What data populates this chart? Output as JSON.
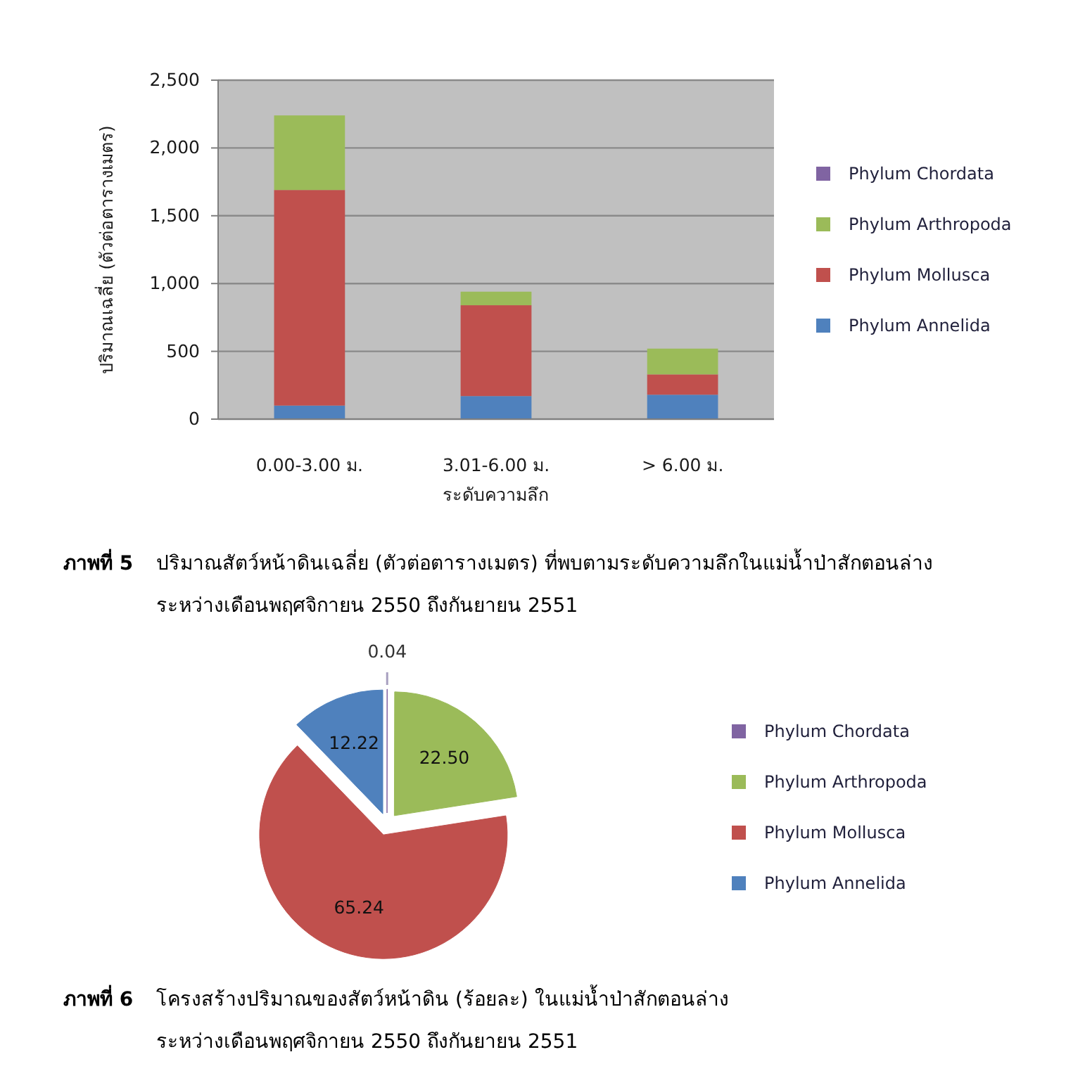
{
  "chart_data": [
    {
      "type": "bar",
      "stacked": true,
      "categories": [
        "0.00-3.00 ม.",
        "3.01-6.00 ม.",
        "> 6.00 ม."
      ],
      "series": [
        {
          "name": "Phylum Annelida",
          "color": "#4f81bd",
          "values": [
            100,
            170,
            180
          ]
        },
        {
          "name": "Phylum Mollusca",
          "color": "#c0504d",
          "values": [
            1590,
            670,
            150
          ]
        },
        {
          "name": "Phylum Arthropoda",
          "color": "#9bbb59",
          "values": [
            550,
            100,
            190
          ]
        },
        {
          "name": "Phylum Chordata",
          "color": "#8064a2",
          "values": [
            0,
            0,
            0
          ]
        }
      ],
      "ylim": [
        0,
        2500
      ],
      "yticks": [
        0,
        500,
        {
          "value": 1000,
          "label": "1,000"
        },
        {
          "value": 1500,
          "label": "1,500"
        },
        {
          "value": 2000,
          "label": "2,000"
        },
        {
          "value": 2500,
          "label": "2,500"
        }
      ],
      "grid": "y",
      "legend": "right",
      "xlabel": "ระดับความลึก",
      "ylabel": "ปริมาณเฉลี่ย (ตัวต่อตารางเมตร)",
      "annotations": [
        "ภาพที่ 5",
        "ปริมาณสัตว์หน้าดินเฉลี่ย (ตัวต่อตารางเมตร) ที่พบตามระดับความลึกในแม่น้ำป่าสักตอนล่าง\nระหว่างเดือนพฤศจิกายน 2550 ถึงกันยายน 2551"
      ]
    },
    {
      "type": "pie",
      "categories": [
        "Phylum Chordata",
        "Phylum Arthropoda",
        "Phylum Mollusca",
        "Phylum Annelida"
      ],
      "values": [
        0.04,
        22.5,
        65.24,
        12.22
      ],
      "colors": [
        "#8064a2",
        "#9bbb59",
        "#c0504d",
        "#4f81bd"
      ],
      "value_labels": [
        "0.04",
        "22.50",
        "65.24",
        "12.22"
      ],
      "legend": "right",
      "annotations": [
        "ภาพที่ 6",
        "โครงสร้างปริมาณของสัตว์หน้าดิน (ร้อยละ) ในแม่น้ำป่าสักตอนล่าง\nระหว่างเดือนพฤศจิกายน 2550 ถึงกันยายน 2551"
      ]
    }
  ]
}
